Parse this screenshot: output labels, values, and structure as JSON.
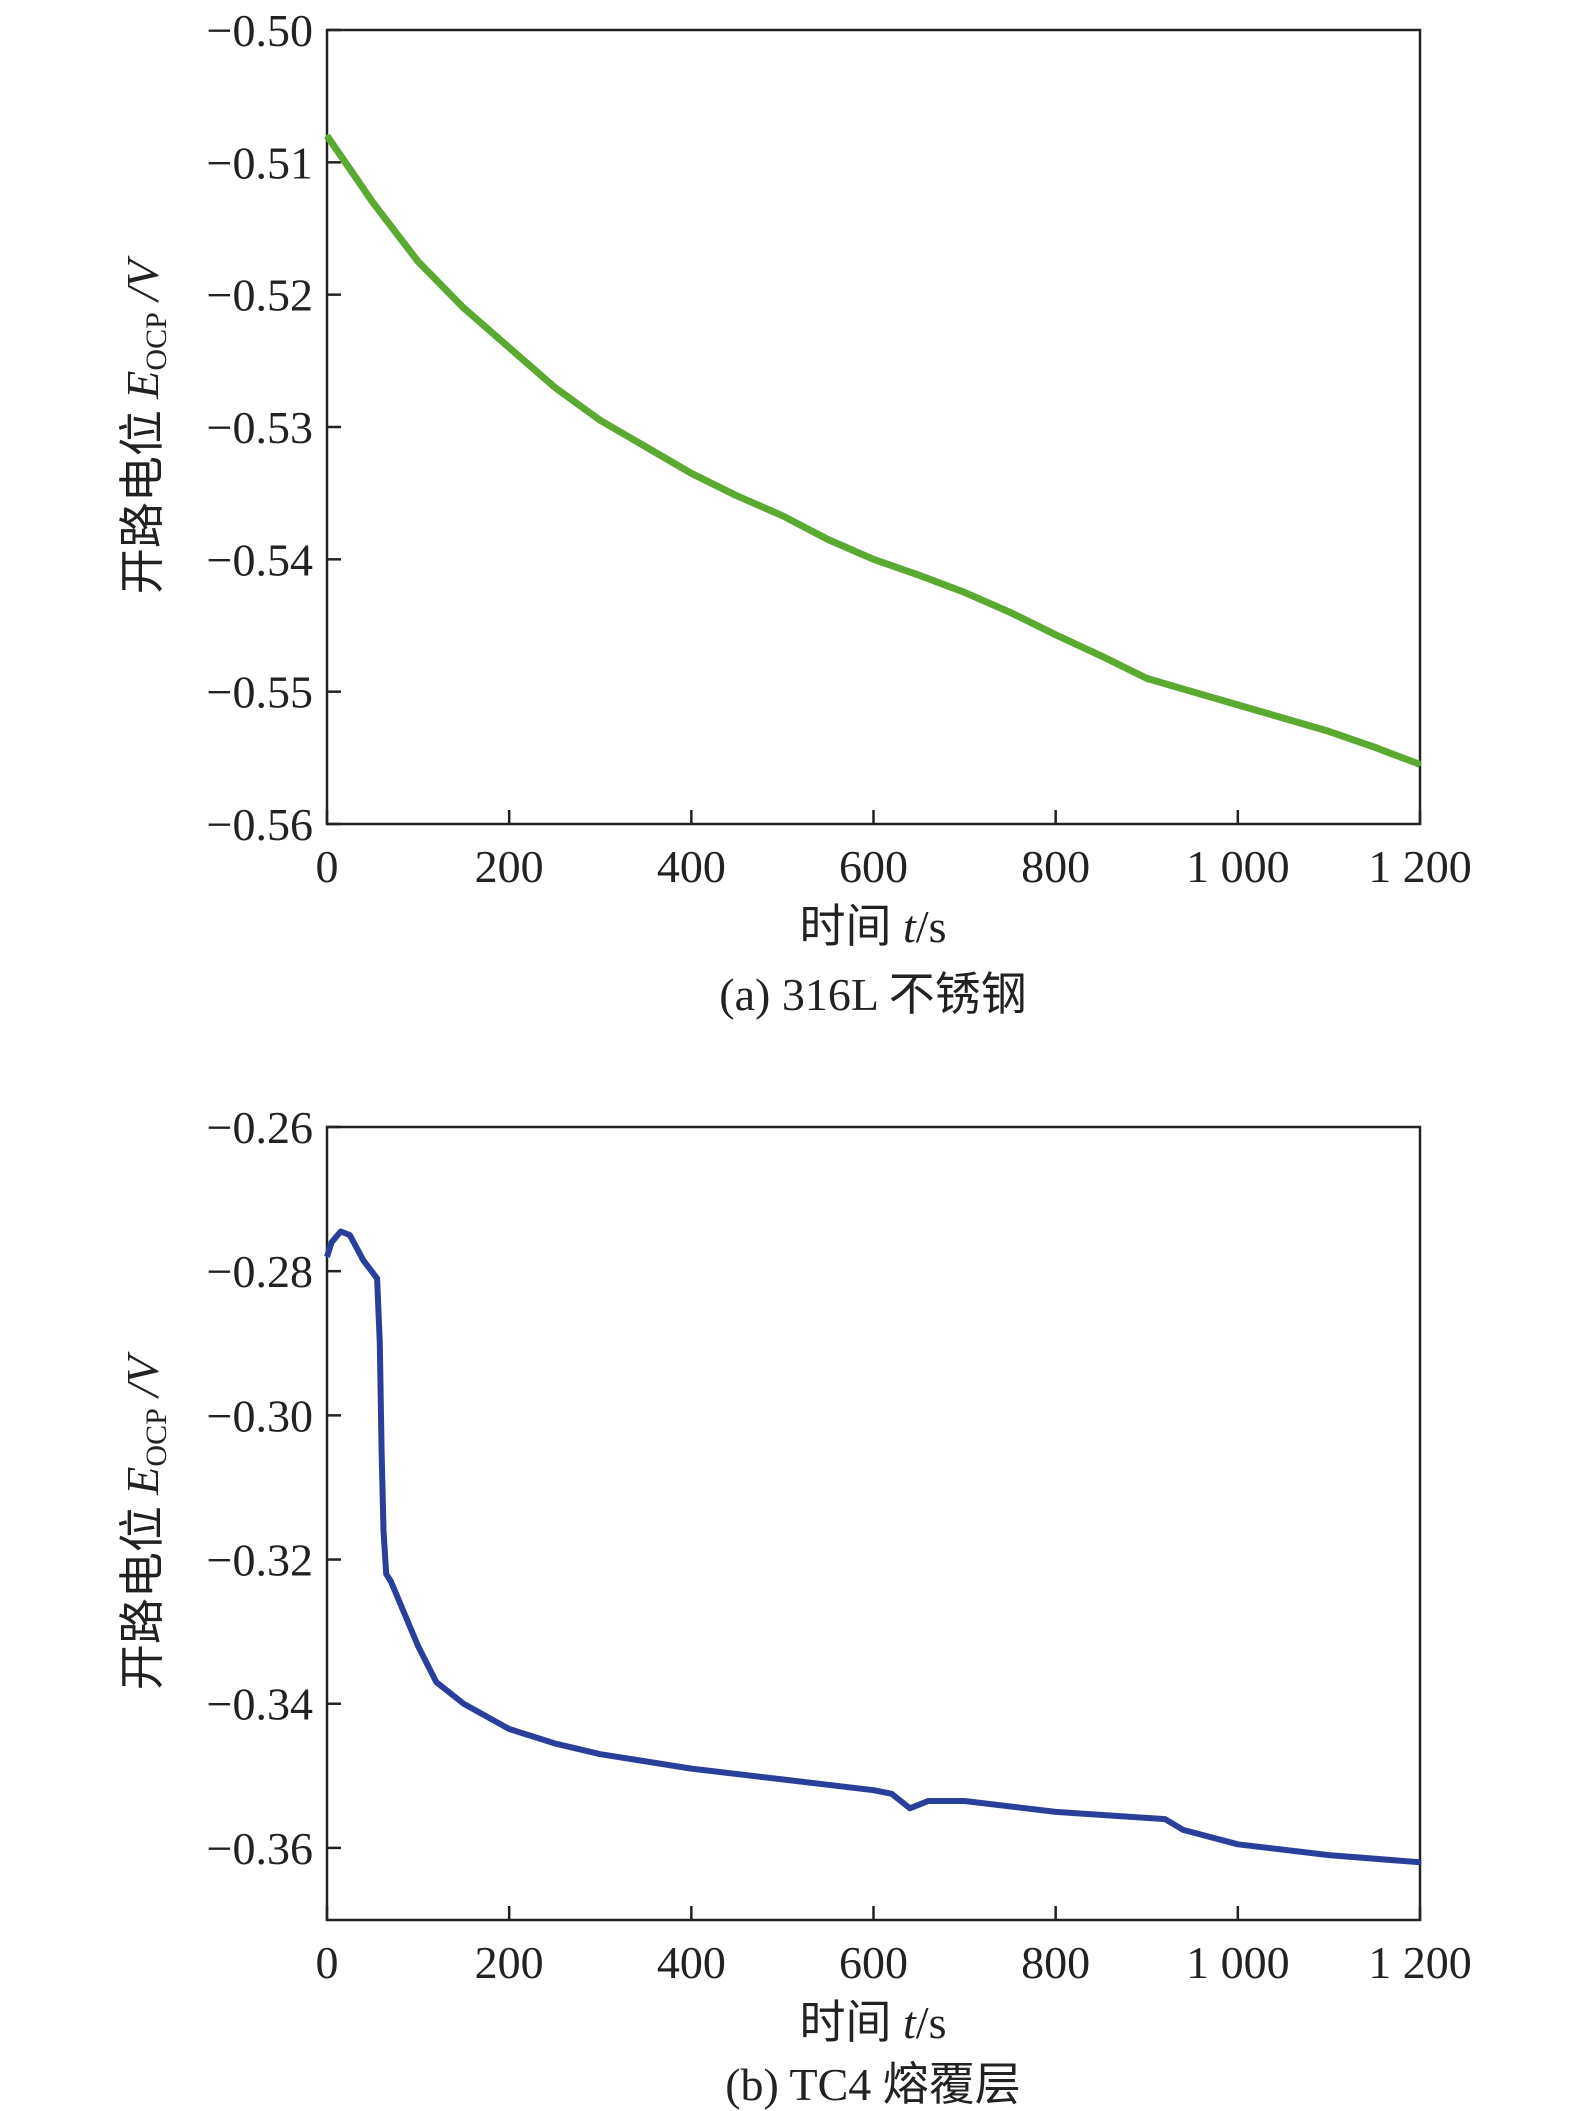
{
  "chart_data": [
    {
      "type": "line",
      "caption": "(a) 316L 不锈钢",
      "xlabel": "时间 t/s",
      "ylabel": "开路电位 E_OCP /V",
      "ylabel_main": "开路电位 ",
      "ylabel_var": "E",
      "ylabel_sub": "OCP",
      "ylabel_unit": " /V",
      "xlabel_main": "时间 ",
      "xlabel_var": "t",
      "xlabel_unit": "/s",
      "xlim": [
        0,
        1200
      ],
      "ylim": [
        -0.56,
        -0.5
      ],
      "xticks": [
        0,
        200,
        400,
        600,
        800,
        1000,
        1200
      ],
      "xtick_labels": [
        "0",
        "200",
        "400",
        "600",
        "800",
        "1 000",
        "1 200"
      ],
      "yticks": [
        -0.5,
        -0.51,
        -0.52,
        -0.53,
        -0.54,
        -0.55,
        -0.56
      ],
      "ytick_labels": [
        "−0.50",
        "−0.51",
        "−0.52",
        "−0.53",
        "−0.54",
        "−0.55",
        "−0.56"
      ],
      "grid": false,
      "color": "#5aaa32",
      "series": [
        {
          "name": "316L",
          "x": [
            0,
            25,
            50,
            100,
            150,
            200,
            250,
            300,
            350,
            400,
            450,
            500,
            550,
            600,
            650,
            700,
            750,
            800,
            850,
            900,
            950,
            1000,
            1050,
            1100,
            1150,
            1200
          ],
          "y": [
            -0.508,
            -0.5105,
            -0.513,
            -0.5175,
            -0.521,
            -0.524,
            -0.527,
            -0.5295,
            -0.5315,
            -0.5335,
            -0.5352,
            -0.5367,
            -0.5385,
            -0.54,
            -0.5412,
            -0.5425,
            -0.544,
            -0.5457,
            -0.5473,
            -0.549,
            -0.55,
            -0.551,
            -0.552,
            -0.553,
            -0.5542,
            -0.5555
          ]
        }
      ]
    },
    {
      "type": "line",
      "caption": "(b) TC4 熔覆层",
      "xlabel": "时间 t/s",
      "ylabel": "开路电位 E_OCP /V",
      "ylabel_main": "开路电位 ",
      "ylabel_var": "E",
      "ylabel_sub": "OCP",
      "ylabel_unit": " /V",
      "xlabel_main": "时间 ",
      "xlabel_var": "t",
      "xlabel_unit": "/s",
      "xlim": [
        0,
        1200
      ],
      "ylim": [
        -0.37,
        -0.26
      ],
      "xticks": [
        0,
        200,
        400,
        600,
        800,
        1000,
        1200
      ],
      "xtick_labels": [
        "0",
        "200",
        "400",
        "600",
        "800",
        "1 000",
        "1 200"
      ],
      "yticks": [
        -0.26,
        -0.28,
        -0.3,
        -0.32,
        -0.34,
        -0.36
      ],
      "ytick_labels": [
        "−0.26",
        "−0.28",
        "−0.30",
        "−0.32",
        "−0.34",
        "−0.36"
      ],
      "grid": false,
      "color": "#2a3f9a",
      "series": [
        {
          "name": "TC4",
          "x": [
            0,
            5,
            15,
            25,
            40,
            55,
            58,
            60,
            62,
            65,
            70,
            80,
            100,
            120,
            150,
            200,
            250,
            300,
            400,
            500,
            600,
            620,
            640,
            660,
            700,
            800,
            920,
            940,
            1000,
            1100,
            1200
          ],
          "y": [
            -0.278,
            -0.276,
            -0.2745,
            -0.275,
            -0.2785,
            -0.281,
            -0.29,
            -0.305,
            -0.316,
            -0.322,
            -0.323,
            -0.326,
            -0.332,
            -0.337,
            -0.34,
            -0.3435,
            -0.3455,
            -0.347,
            -0.349,
            -0.3505,
            -0.352,
            -0.3525,
            -0.3545,
            -0.3535,
            -0.3535,
            -0.355,
            -0.356,
            -0.3575,
            -0.3595,
            -0.361,
            -0.362
          ]
        }
      ]
    }
  ]
}
